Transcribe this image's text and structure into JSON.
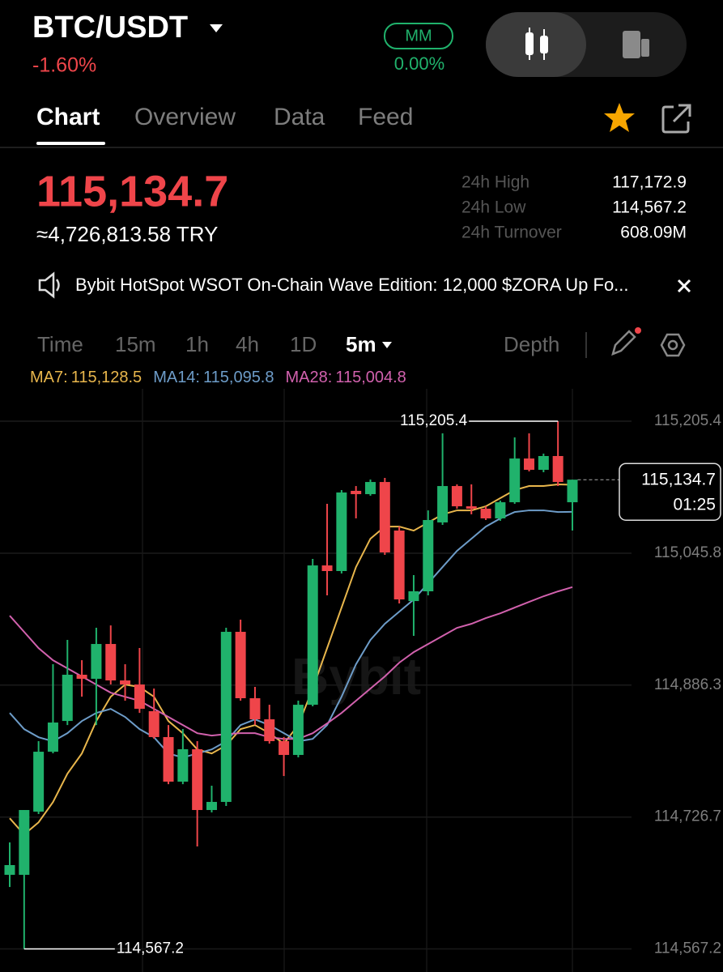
{
  "header": {
    "symbol": "BTC/USDT",
    "change": "-1.60%",
    "mm": "MM",
    "mm_value": "0.00%"
  },
  "tabs": [
    "Chart",
    "Overview",
    "Data",
    "Feed"
  ],
  "price": {
    "last": "115,134.7",
    "converted": "≈4,726,813.58 TRY"
  },
  "stats": [
    {
      "label": "24h High",
      "value": "117,172.9"
    },
    {
      "label": "24h Low",
      "value": "114,567.2"
    },
    {
      "label": "24h Turnover",
      "value": "608.09M"
    }
  ],
  "announcement": "Bybit HotSpot WSOT On-Chain Wave Edition: 12,000 $ZORA Up Fo...",
  "intervals": [
    "Time",
    "15m",
    "1h",
    "4h",
    "1D",
    "5m"
  ],
  "depth": "Depth",
  "chart_data": {
    "type": "candlestick",
    "watermark": "Bybit",
    "up_color": "#20b26c",
    "down_color": "#ef454a",
    "candles": {
      "open": [
        114656.8,
        114656.8,
        114733.2,
        114805.7,
        114842.9,
        114898.8,
        114893.9,
        114936.0,
        114891.9,
        114887.0,
        114854.7,
        114823.4,
        114769.5,
        114808.7,
        114735.2,
        114745.0,
        114950.7,
        114870.4,
        114844.9,
        114818.5,
        114801.8,
        114862.5,
        115031.0,
        115024.2,
        115121.2,
        115117.2,
        115131.9,
        115073.2,
        114987.9,
        114999.7,
        115083.0,
        115127.0,
        115102.5,
        115099.6,
        115087.9,
        115107.4,
        115160.3,
        115146.6,
        115163.3,
        115107.4
      ],
      "high": [
        114696.0,
        114735.2,
        114818.5,
        114911.5,
        114940.9,
        114916.4,
        114955.6,
        114958.5,
        114911.5,
        114931.1,
        114882.1,
        114838.0,
        114833.2,
        114818.5,
        114764.6,
        114955.6,
        114965.4,
        114884.1,
        114862.5,
        114823.4,
        114867.4,
        115038.9,
        115105.5,
        115122.1,
        115127.0,
        115134.9,
        115136.8,
        115078.1,
        115019.3,
        115097.6,
        115190.7,
        115129.0,
        115129.0,
        115102.5,
        115109.4,
        115185.8,
        115190.7,
        115166.2,
        115205.4,
        115134.7
      ],
      "low": [
        114642.1,
        114567.2,
        114730.3,
        114803.8,
        114838.0,
        114872.3,
        114838.0,
        114887.0,
        114867.4,
        114852.7,
        114821.4,
        114766.5,
        114766.5,
        114691.1,
        114732.3,
        114740.1,
        114867.4,
        114838.0,
        114815.5,
        114776.3,
        114798.9,
        114860.6,
        114994.8,
        115021.2,
        115087.9,
        115115.3,
        115043.8,
        114985.0,
        114945.8,
        114994.8,
        115080.0,
        115099.6,
        115092.8,
        115085.9,
        115084.9,
        115105.5,
        115144.7,
        115143.7,
        115127.0,
        115073.2
      ],
      "close": [
        114668.6,
        114735.2,
        114805.7,
        114841.0,
        114898.8,
        114893.9,
        114936.0,
        114891.9,
        114887.0,
        114857.6,
        114823.4,
        114769.5,
        114808.7,
        114735.2,
        114745.0,
        114950.7,
        114870.4,
        114844.9,
        114818.5,
        114801.8,
        114862.5,
        115031.0,
        115024.2,
        115119.2,
        115117.2,
        115131.9,
        115046.7,
        114989.9,
        114999.7,
        115085.9,
        115127.0,
        115102.5,
        115099.6,
        115087.9,
        115107.4,
        115160.3,
        115146.6,
        115163.3,
        115131.9,
        115134.7
      ]
    },
    "series": [
      {
        "name": "MA7:",
        "value_label": "115,128.5",
        "color": "#e8b64c",
        "values": [
          114725.2,
          114705.6,
          114720.3,
          114744.8,
          114779.1,
          114803.6,
          114842.8,
          114872.2,
          114886.9,
          114884.0,
          114872.2,
          114842.8,
          114828.1,
          114808.5,
          114803.6,
          114813.4,
          114833.0,
          114837.9,
          114828.1,
          114815.4,
          114837.9,
          114882.0,
          114931.0,
          114980.0,
          115029.0,
          115063.3,
          115078.0,
          115078.0,
          115073.1,
          115082.9,
          115092.7,
          115097.6,
          115097.6,
          115102.5,
          115112.3,
          115122.1,
          115127.0,
          115127.0,
          115129.0,
          115128.5
        ]
      },
      {
        "name": "MA14:",
        "value_label": "115,095.8",
        "color": "#6d9cc8",
        "values": [
          114852.6,
          114833.0,
          114823.2,
          114818.3,
          114828.1,
          114842.8,
          114852.6,
          114857.5,
          114847.7,
          114833.0,
          114823.2,
          114803.6,
          114798.7,
          114803.6,
          114808.5,
          114818.3,
          114837.9,
          114844.8,
          114837.9,
          114828.1,
          114818.3,
          114821.2,
          114837.9,
          114872.2,
          114911.4,
          114940.8,
          114960.4,
          114975.1,
          114989.8,
          115009.4,
          115029.0,
          115048.6,
          115063.3,
          115078.0,
          115087.8,
          115095.6,
          115097.6,
          115097.6,
          115095.6,
          115095.8
        ]
      },
      {
        "name": "MA28:",
        "value_label": "115,004.8",
        "color": "#d161ad",
        "values": [
          114970.2,
          114950.6,
          114931.0,
          114916.3,
          114906.5,
          114896.7,
          114886.9,
          114877.1,
          114872.2,
          114867.3,
          114857.5,
          114847.7,
          114837.9,
          114828.1,
          114825.2,
          114827.1,
          114828.1,
          114828.1,
          114823.2,
          114821.2,
          114821.2,
          114828.1,
          114839.9,
          114852.6,
          114867.3,
          114882.0,
          114896.7,
          114913.4,
          114926.1,
          114935.9,
          114945.7,
          114955.5,
          114960.4,
          114967.3,
          114973.1,
          114980.0,
          114986.9,
          114993.7,
          114999.6,
          115004.8
        ]
      }
    ],
    "ylim": [
      114539.3,
      115244.6
    ],
    "yticks": [
      {
        "value": 115205.4,
        "label": "115,205.4"
      },
      {
        "value": 115045.8,
        "label": "115,045.8"
      },
      {
        "value": 114886.3,
        "label": "114,886.3"
      },
      {
        "value": 114726.7,
        "label": "114,726.7"
      },
      {
        "value": 114567.2,
        "label": "114,567.2"
      }
    ],
    "grid": true,
    "high_marker": {
      "value": 115205.4,
      "label": "115,205.4"
    },
    "low_marker": {
      "value": 114567.2,
      "label": "114,567.2"
    },
    "last_price": {
      "value": 115134.7,
      "label": "115,134.7"
    },
    "countdown": "01:25"
  }
}
